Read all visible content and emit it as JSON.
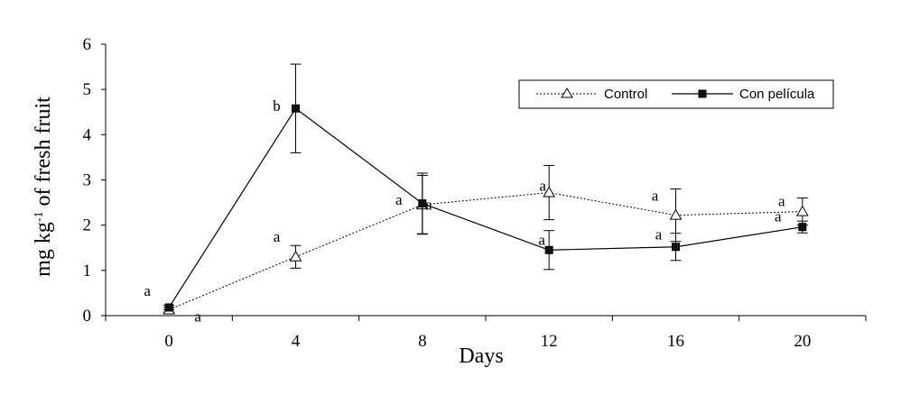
{
  "chart_data": {
    "type": "line",
    "title": "",
    "xlabel": "Days",
    "ylabel": {
      "prefix": "mg kg",
      "sup": "-1",
      "suffix": " of fresh fruit"
    },
    "x": [
      0,
      4,
      8,
      12,
      16,
      20
    ],
    "x_ticks": [
      "0",
      "4",
      "8",
      "12",
      "16",
      "20"
    ],
    "xlim": [
      -2,
      22
    ],
    "ylim": [
      0,
      6
    ],
    "y_ticks": [
      "0",
      "1",
      "2",
      "3",
      "4",
      "5",
      "6"
    ],
    "grid": false,
    "legend_position": "top-right",
    "series": [
      {
        "name": "Control",
        "marker": "open-triangle",
        "line_style": "dotted",
        "values": [
          0.13,
          1.3,
          2.45,
          2.72,
          2.22,
          2.3
        ],
        "errors": [
          0.05,
          0.25,
          0.65,
          0.6,
          0.58,
          0.3
        ],
        "letters": [
          "a",
          "a",
          "a",
          "a",
          "a",
          "a"
        ]
      },
      {
        "name": "Con película",
        "marker": "filled-square",
        "line_style": "solid",
        "values": [
          0.18,
          4.58,
          2.48,
          1.45,
          1.52,
          1.96
        ],
        "errors": [
          0.05,
          0.98,
          0.67,
          0.43,
          0.3,
          0.13
        ],
        "letters": [
          "a",
          "b",
          "a",
          "a",
          "a",
          "a"
        ]
      }
    ]
  }
}
